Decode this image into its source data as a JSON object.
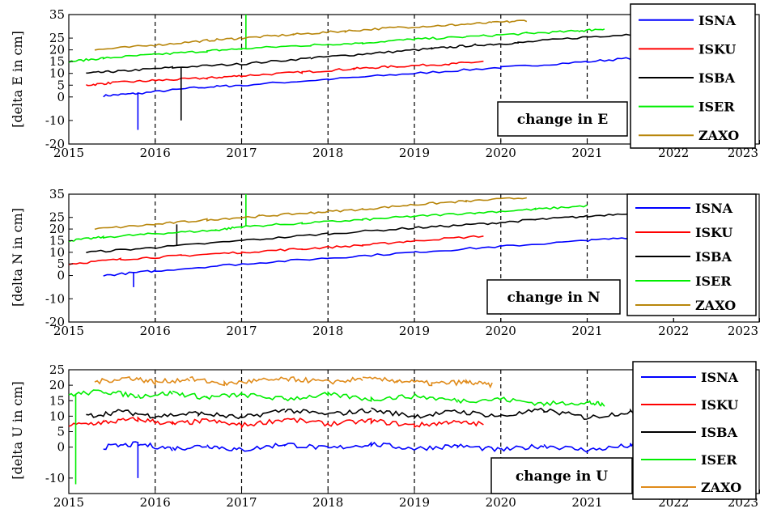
{
  "colors": {
    "ISNA": "#0000ff",
    "ISKU": "#ff0000",
    "ISBA": "#000000",
    "ISER": "#00ee00",
    "ZAXO": "#b8860b",
    "ZAXO_U": "#e08b1a",
    "gridline": "#000000"
  },
  "chart_data": [
    {
      "type": "line",
      "panel": "E",
      "ylabel": "[delta E in cm]",
      "annotation": "change in E",
      "xlim": [
        2015,
        2023
      ],
      "ylim": [
        -20,
        35
      ],
      "xticks": [
        2015,
        2016,
        2017,
        2018,
        2019,
        2020,
        2021,
        2022,
        2023
      ],
      "xtick_labels": [
        "2015",
        "2016",
        "2017",
        "2018",
        "2019",
        "2020",
        "2021",
        "2022",
        "2023"
      ],
      "yticks": [
        -20,
        -10,
        0,
        5,
        10,
        15,
        20,
        25,
        35
      ],
      "ytick_labels": [
        "-20",
        "-10",
        "0",
        "5",
        "10",
        "15",
        "20",
        "25",
        "35"
      ],
      "grid": "vertical dashed at years",
      "legend": "right",
      "series": [
        {
          "name": "ISNA",
          "x": [
            2015.4,
            2015.8,
            2016.5,
            2017.0,
            2018.0,
            2019.0,
            2020.0,
            2021.0,
            2021.7
          ],
          "y": [
            0.5,
            1.5,
            4.0,
            5.0,
            7.5,
            10.0,
            12.5,
            15.0,
            17.0
          ],
          "spike_x": 2015.8,
          "spike_y": -14
        },
        {
          "name": "ISKU",
          "x": [
            2015.2,
            2015.5,
            2016.0,
            2016.6,
            2017.0,
            2017.7,
            2018.3,
            2018.8,
            2019.4,
            2019.8
          ],
          "y": [
            5.0,
            6.0,
            7.0,
            8.0,
            9.0,
            10.5,
            12.0,
            13.0,
            14.0,
            15.0
          ]
        },
        {
          "name": "ISBA",
          "x": [
            2015.2,
            2015.6,
            2016.2,
            2017.0,
            2017.8,
            2018.5,
            2019.2,
            2019.7,
            2020.2,
            2021.0,
            2021.7
          ],
          "y": [
            10.0,
            11.0,
            12.5,
            14.0,
            16.5,
            18.5,
            20.5,
            22.0,
            23.0,
            25.5,
            27.0
          ],
          "spike_x": 2016.3,
          "spike_y": -10
        },
        {
          "name": "ISER",
          "x": [
            2015.0,
            2015.4,
            2016.0,
            2016.6,
            2017.0,
            2017.8,
            2018.4,
            2019.0,
            2019.6,
            2020.3,
            2020.9,
            2021.2
          ],
          "y": [
            15.0,
            16.5,
            18.0,
            19.5,
            20.5,
            22.0,
            23.0,
            24.5,
            25.5,
            27.0,
            28.0,
            29.0
          ],
          "spike_x": 2017.05,
          "spike_y": 35
        },
        {
          "name": "ZAXO",
          "x": [
            2015.3,
            2016.0,
            2016.6,
            2017.0,
            2017.6,
            2018.2,
            2018.8,
            2019.4,
            2019.9,
            2020.3
          ],
          "y": [
            20.0,
            22.0,
            24.0,
            25.0,
            26.5,
            28.0,
            29.5,
            30.5,
            31.5,
            32.5
          ]
        }
      ]
    },
    {
      "type": "line",
      "panel": "N",
      "ylabel": "[delta N in cm]",
      "annotation": "change in N",
      "xlim": [
        2015,
        2023
      ],
      "ylim": [
        -20,
        35
      ],
      "xticks": [
        2015,
        2016,
        2017,
        2018,
        2019,
        2020,
        2021,
        2022,
        2023
      ],
      "xtick_labels": [
        "2015",
        "2016",
        "2017",
        "2018",
        "2019",
        "2020",
        "2021",
        "2022",
        "2023"
      ],
      "yticks": [
        -20,
        -10,
        0,
        5,
        10,
        15,
        20,
        25,
        35
      ],
      "ytick_labels": [
        "-20",
        "-10",
        "0",
        "5",
        "10",
        "15",
        "20",
        "25",
        "35"
      ],
      "grid": "vertical dashed at years",
      "legend": "right",
      "series": [
        {
          "name": "ISNA",
          "x": [
            2015.4,
            2016.0,
            2017.0,
            2018.0,
            2019.0,
            2020.0,
            2021.0,
            2021.7
          ],
          "y": [
            0.0,
            2.0,
            5.0,
            7.5,
            10.0,
            12.5,
            15.0,
            17.0
          ],
          "spike_x": 2015.75,
          "spike_y": -5
        },
        {
          "name": "ISKU",
          "x": [
            2015.0,
            2015.6,
            2016.3,
            2017.0,
            2017.7,
            2018.4,
            2019.0,
            2019.8
          ],
          "y": [
            5.0,
            7.0,
            8.5,
            10.0,
            11.5,
            13.0,
            15.0,
            17.0
          ]
        },
        {
          "name": "ISBA",
          "x": [
            2015.2,
            2016.0,
            2017.0,
            2018.0,
            2019.0,
            2019.7,
            2020.4,
            2021.0,
            2021.7
          ],
          "y": [
            10.0,
            12.0,
            15.0,
            18.0,
            20.5,
            22.0,
            24.0,
            25.5,
            27.5
          ],
          "spike_x": 2016.25,
          "spike_y": 22
        },
        {
          "name": "ISER",
          "x": [
            2015.0,
            2015.4,
            2016.0,
            2016.7,
            2017.0,
            2017.7,
            2018.4,
            2019.0,
            2019.7,
            2020.4,
            2021.0
          ],
          "y": [
            15.0,
            16.5,
            18.0,
            19.5,
            21.0,
            22.5,
            24.0,
            25.5,
            27.0,
            28.5,
            30.0
          ],
          "spike_x": 2017.05,
          "spike_y": 35
        },
        {
          "name": "ZAXO",
          "x": [
            2015.3,
            2016.0,
            2016.6,
            2017.2,
            2017.8,
            2018.4,
            2019.0,
            2019.6,
            2020.3
          ],
          "y": [
            20.0,
            22.0,
            24.0,
            25.5,
            27.0,
            28.5,
            30.5,
            32.0,
            33.5
          ]
        }
      ]
    },
    {
      "type": "line",
      "panel": "U",
      "ylabel": "[delta U in cm]",
      "annotation": "change in U",
      "xlim": [
        2015,
        2023
      ],
      "ylim": [
        -15,
        25
      ],
      "xticks": [
        2015,
        2016,
        2017,
        2018,
        2019,
        2020,
        2021,
        2022,
        2023
      ],
      "xtick_labels": [
        "2015",
        "2016",
        "2017",
        "2018",
        "2019",
        "2020",
        "2021",
        "2022",
        "2023"
      ],
      "yticks": [
        -10,
        0,
        5,
        10,
        15,
        20,
        25
      ],
      "ytick_labels": [
        "-10",
        "0",
        "5",
        "10",
        "15",
        "20",
        "25"
      ],
      "grid": "vertical dashed at years",
      "legend": "right",
      "series": [
        {
          "name": "ISNA",
          "x": [
            2015.4,
            2015.8,
            2016.2,
            2016.6,
            2017.0,
            2017.5,
            2018.0,
            2018.5,
            2019.0,
            2019.5,
            2020.0,
            2020.5,
            2021.0,
            2021.5,
            2021.7
          ],
          "y": [
            0.0,
            1.0,
            -0.5,
            0.5,
            -1.0,
            1.0,
            -0.5,
            1.0,
            -0.5,
            0.5,
            -1.0,
            0.5,
            -1.0,
            0.5,
            0.0
          ],
          "spike_x": 2015.8,
          "spike_y": -10
        },
        {
          "name": "ISKU",
          "x": [
            2015.0,
            2015.4,
            2015.8,
            2016.2,
            2016.6,
            2017.0,
            2017.5,
            2018.0,
            2018.5,
            2019.0,
            2019.4,
            2019.8
          ],
          "y": [
            7.0,
            8.0,
            9.0,
            7.5,
            8.5,
            7.0,
            9.0,
            7.5,
            8.5,
            7.0,
            8.0,
            7.5
          ]
        },
        {
          "name": "ISBA",
          "x": [
            2015.2,
            2015.6,
            2016.0,
            2016.5,
            2017.0,
            2017.5,
            2018.0,
            2018.5,
            2019.0,
            2019.5,
            2020.0,
            2020.5,
            2021.0,
            2021.5,
            2021.7
          ],
          "y": [
            10.0,
            11.5,
            10.0,
            11.0,
            9.5,
            12.0,
            10.5,
            12.0,
            10.0,
            11.5,
            10.0,
            12.0,
            9.5,
            11.5,
            12.0
          ]
        },
        {
          "name": "ISER",
          "x": [
            2015.0,
            2015.4,
            2015.8,
            2016.2,
            2016.6,
            2017.0,
            2017.5,
            2018.0,
            2018.5,
            2019.0,
            2019.5,
            2020.0,
            2020.5,
            2021.0,
            2021.2
          ],
          "y": [
            17.0,
            18.0,
            16.5,
            17.5,
            16.0,
            17.0,
            15.5,
            17.0,
            15.5,
            16.5,
            15.0,
            15.5,
            14.0,
            14.5,
            13.5
          ],
          "spike_x": 2015.08,
          "spike_y": -12
        },
        {
          "name": "ZAXO",
          "x": [
            2015.3,
            2015.7,
            2016.0,
            2016.4,
            2016.8,
            2017.2,
            2017.6,
            2018.0,
            2018.4,
            2018.8,
            2019.2,
            2019.6,
            2019.9
          ],
          "y": [
            21.0,
            22.5,
            21.0,
            22.0,
            20.5,
            21.5,
            22.0,
            21.0,
            22.0,
            21.5,
            20.5,
            21.0,
            20.0
          ]
        }
      ]
    }
  ]
}
